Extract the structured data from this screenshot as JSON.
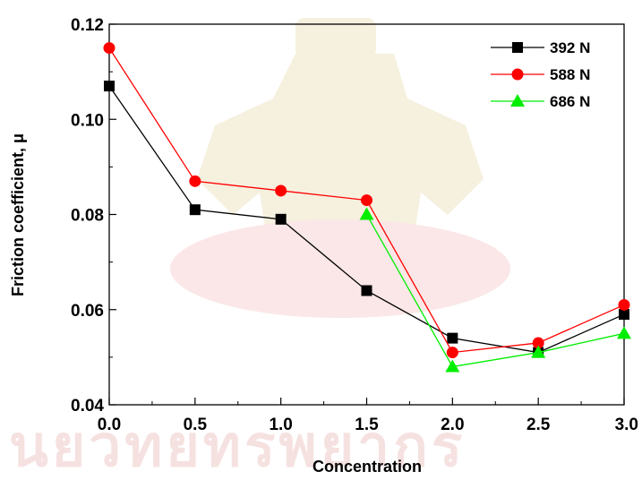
{
  "chart_data": {
    "type": "line",
    "xlabel": "Concentration",
    "ylabel": "Friction coefficient, μ",
    "xlim": [
      0,
      3
    ],
    "ylim": [
      0.04,
      0.12
    ],
    "x_ticks": [
      0.0,
      0.5,
      1.0,
      1.5,
      2.0,
      2.5,
      3.0
    ],
    "x_tick_labels": [
      "0.0",
      "0.5",
      "1.0",
      "1.5",
      "2.0",
      "2.5",
      "3.0"
    ],
    "y_ticks": [
      0.04,
      0.06,
      0.08,
      0.1,
      0.12
    ],
    "y_tick_labels": [
      "0.04",
      "0.06",
      "0.08",
      "0.10",
      "0.12"
    ],
    "grid": false,
    "legend_position": "top-right",
    "series": [
      {
        "name": "392 N",
        "marker": "square",
        "color": "#000000",
        "x": [
          0.0,
          0.5,
          1.0,
          1.5,
          2.0,
          2.5,
          3.0
        ],
        "values": [
          0.107,
          0.081,
          0.079,
          0.064,
          0.054,
          0.051,
          0.059
        ]
      },
      {
        "name": "588 N",
        "marker": "circle",
        "color": "#ff0000",
        "x": [
          0.0,
          0.5,
          1.0,
          1.5,
          2.0,
          2.5,
          3.0
        ],
        "values": [
          0.115,
          0.087,
          0.085,
          0.083,
          0.051,
          0.053,
          0.061
        ]
      },
      {
        "name": "686 N",
        "marker": "triangle",
        "color": "#00ee00",
        "x": [
          1.5,
          2.0,
          2.5,
          3.0
        ],
        "values": [
          0.08,
          0.048,
          0.051,
          0.055
        ]
      }
    ]
  }
}
